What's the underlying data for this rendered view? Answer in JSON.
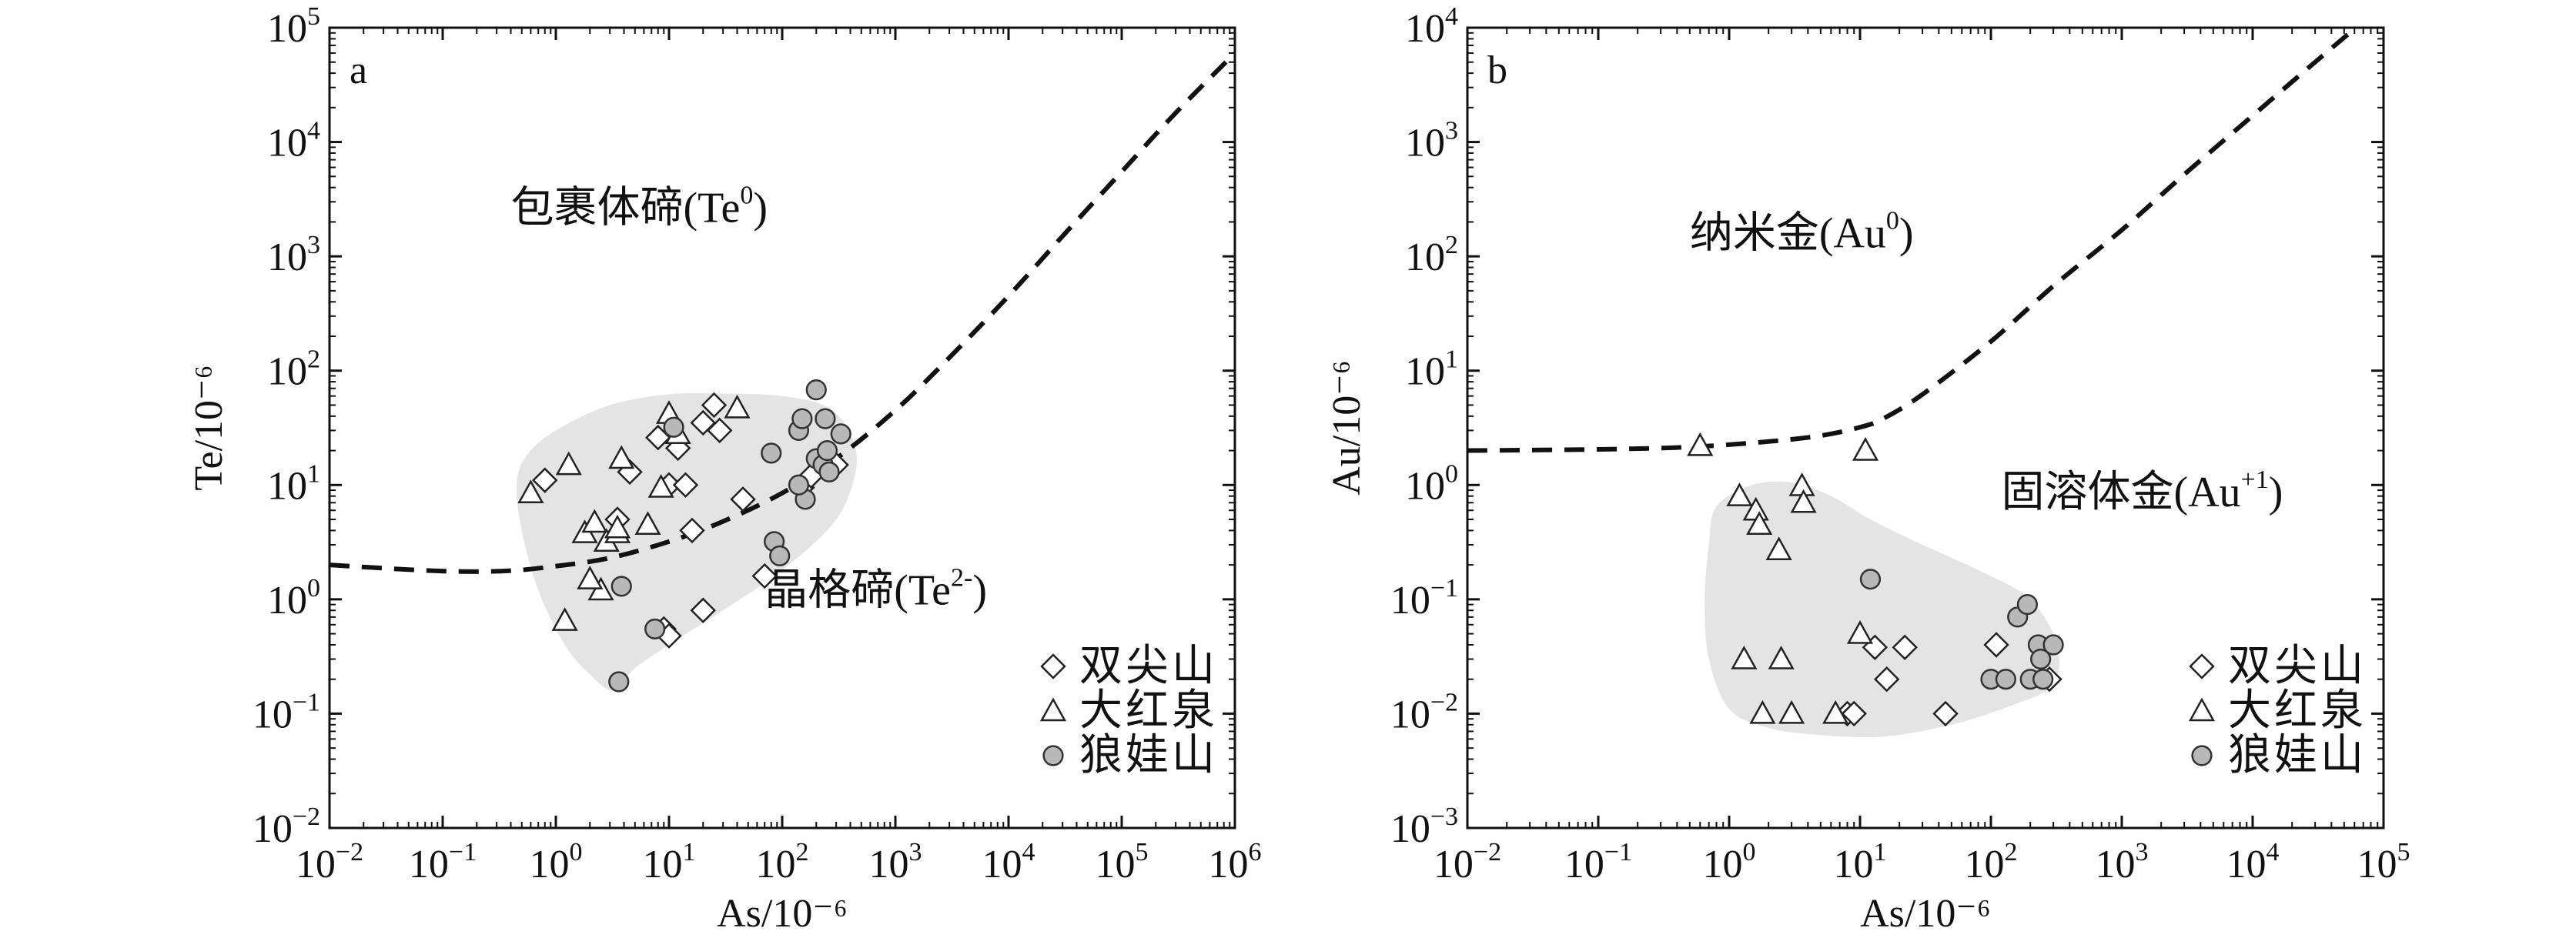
{
  "chart_data": [
    {
      "type": "scatter",
      "panel_label": "a",
      "xlabel": "As/10⁻⁶",
      "ylabel": "Te/10⁻⁶",
      "xscale": "log",
      "yscale": "log",
      "xlim": [
        0.01,
        1000000
      ],
      "ylim": [
        0.01,
        100000
      ],
      "x_ticks": [
        {
          "base": "10",
          "exp": "−2",
          "value": 0.01
        },
        {
          "base": "10",
          "exp": "−1",
          "value": 0.1
        },
        {
          "base": "10",
          "exp": "0",
          "value": 1
        },
        {
          "base": "10",
          "exp": "1",
          "value": 10
        },
        {
          "base": "10",
          "exp": "2",
          "value": 100
        },
        {
          "base": "10",
          "exp": "3",
          "value": 1000
        },
        {
          "base": "10",
          "exp": "4",
          "value": 10000
        },
        {
          "base": "10",
          "exp": "5",
          "value": 100000
        },
        {
          "base": "10",
          "exp": "6",
          "value": 1000000
        }
      ],
      "y_ticks": [
        {
          "base": "10",
          "exp": "−2",
          "value": 0.01
        },
        {
          "base": "10",
          "exp": "−1",
          "value": 0.1
        },
        {
          "base": "10",
          "exp": "0",
          "value": 1
        },
        {
          "base": "10",
          "exp": "1",
          "value": 10
        },
        {
          "base": "10",
          "exp": "2",
          "value": 100
        },
        {
          "base": "10",
          "exp": "3",
          "value": 1000
        },
        {
          "base": "10",
          "exp": "4",
          "value": 10000
        },
        {
          "base": "10",
          "exp": "5",
          "value": 100000
        }
      ],
      "annotations": [
        {
          "text": "包裹体碲(Te",
          "sup": "0",
          "tail": ")",
          "x": 0.4,
          "y": 2000
        },
        {
          "text": "晶格碲(Te",
          "sup": "2-",
          "tail": ")",
          "x": 70,
          "y": 0.9
        }
      ],
      "boundary_curve": {
        "style": "dashed",
        "points": [
          [
            0.01,
            2.0
          ],
          [
            0.05,
            1.82
          ],
          [
            0.15,
            1.75
          ],
          [
            0.4,
            1.78
          ],
          [
            1,
            1.95
          ],
          [
            3,
            2.3
          ],
          [
            10,
            3.2
          ],
          [
            30,
            4.8
          ],
          [
            100,
            8.5
          ],
          [
            300,
            17
          ],
          [
            1000,
            45
          ],
          [
            3000,
            130
          ],
          [
            10000,
            450
          ],
          [
            30000,
            1500
          ],
          [
            100000,
            5500
          ],
          [
            300000,
            18000
          ],
          [
            1000000,
            60000
          ]
        ]
      },
      "shaded_region": {
        "fill": "#e4e4e4",
        "points": [
          [
            0.55,
            18
          ],
          [
            1.0,
            30
          ],
          [
            3,
            50
          ],
          [
            10,
            62
          ],
          [
            30,
            63
          ],
          [
            100,
            60
          ],
          [
            250,
            48
          ],
          [
            400,
            28
          ],
          [
            450,
            14
          ],
          [
            300,
            5
          ],
          [
            100,
            1.8
          ],
          [
            30,
            0.8
          ],
          [
            10,
            0.4
          ],
          [
            5,
            0.25
          ],
          [
            3.2,
            0.16
          ],
          [
            2,
            0.22
          ],
          [
            1.2,
            0.4
          ],
          [
            0.7,
            1.2
          ],
          [
            0.5,
            4
          ],
          [
            0.45,
            10
          ]
        ]
      },
      "legend": {
        "position": "bottom-right",
        "entries": [
          {
            "marker": "diamond",
            "label": "双尖山"
          },
          {
            "marker": "triangle",
            "label": "大红泉"
          },
          {
            "marker": "circle",
            "label": "狼娃山"
          }
        ]
      },
      "series": [
        {
          "name": "双尖山",
          "marker": "diamond",
          "points": [
            [
              0.8,
              11
            ],
            [
              3.5,
              5
            ],
            [
              4.5,
              13
            ],
            [
              8,
              26
            ],
            [
              10,
              10
            ],
            [
              12,
              21
            ],
            [
              14,
              10
            ],
            [
              16,
              4
            ],
            [
              25,
              50
            ],
            [
              20,
              35
            ],
            [
              28,
              30
            ],
            [
              45,
              7.5
            ],
            [
              70,
              1.6
            ],
            [
              150,
              9.5
            ],
            [
              180,
              12
            ],
            [
              300,
              15
            ],
            [
              20,
              0.8
            ],
            [
              9,
              0.55
            ],
            [
              10,
              0.48
            ]
          ]
        },
        {
          "name": "大红泉",
          "marker": "triangle",
          "points": [
            [
              0.6,
              8.5
            ],
            [
              1.3,
              15
            ],
            [
              1.8,
              3.8
            ],
            [
              2.2,
              4.7
            ],
            [
              2.8,
              3.2
            ],
            [
              3.5,
              3.8
            ],
            [
              2.5,
              1.2
            ],
            [
              3.8,
              17
            ],
            [
              6.5,
              4.5
            ],
            [
              8.5,
              9.5
            ],
            [
              10,
              42
            ],
            [
              12,
              28
            ],
            [
              40,
              47
            ],
            [
              1.2,
              0.65
            ],
            [
              2,
              1.5
            ],
            [
              3.5,
              4.2
            ]
          ]
        },
        {
          "name": "狼娃山",
          "marker": "circle",
          "points": [
            [
              3.6,
              0.19
            ],
            [
              3.8,
              1.3
            ],
            [
              7.5,
              0.55
            ],
            [
              11,
              32
            ],
            [
              80,
              19
            ],
            [
              85,
              3.2
            ],
            [
              95,
              2.4
            ],
            [
              140,
              30
            ],
            [
              150,
              38
            ],
            [
              160,
              7.5
            ],
            [
              200,
              68
            ],
            [
              200,
              17
            ],
            [
              230,
              15
            ],
            [
              240,
              38
            ],
            [
              250,
              20
            ],
            [
              330,
              28
            ],
            [
              140,
              10
            ],
            [
              260,
              13
            ]
          ]
        }
      ]
    },
    {
      "type": "scatter",
      "panel_label": "b",
      "xlabel": "As/10⁻⁶",
      "ylabel": "Au/10⁻⁶",
      "xscale": "log",
      "yscale": "log",
      "xlim": [
        0.01,
        100000
      ],
      "ylim": [
        0.001,
        10000
      ],
      "x_ticks": [
        {
          "base": "10",
          "exp": "−2",
          "value": 0.01
        },
        {
          "base": "10",
          "exp": "−1",
          "value": 0.1
        },
        {
          "base": "10",
          "exp": "0",
          "value": 1
        },
        {
          "base": "10",
          "exp": "1",
          "value": 10
        },
        {
          "base": "10",
          "exp": "2",
          "value": 100
        },
        {
          "base": "10",
          "exp": "3",
          "value": 1000
        },
        {
          "base": "10",
          "exp": "4",
          "value": 10000
        },
        {
          "base": "10",
          "exp": "5",
          "value": 100000
        }
      ],
      "y_ticks": [
        {
          "base": "10",
          "exp": "−3",
          "value": 0.001
        },
        {
          "base": "10",
          "exp": "−2",
          "value": 0.01
        },
        {
          "base": "10",
          "exp": "−1",
          "value": 0.1
        },
        {
          "base": "10",
          "exp": "0",
          "value": 1
        },
        {
          "base": "10",
          "exp": "1",
          "value": 10
        },
        {
          "base": "10",
          "exp": "2",
          "value": 100
        },
        {
          "base": "10",
          "exp": "3",
          "value": 1000
        },
        {
          "base": "10",
          "exp": "4",
          "value": 10000
        }
      ],
      "annotations": [
        {
          "text": "纳米金(Au",
          "sup": "0",
          "tail": ")",
          "x": 0.5,
          "y": 120
        },
        {
          "text": "固溶体金(Au",
          "sup": "+1",
          "tail": ")",
          "x": 120,
          "y": 0.65
        }
      ],
      "boundary_curve": {
        "style": "dashed",
        "points": [
          [
            0.01,
            2.0
          ],
          [
            0.1,
            2.05
          ],
          [
            0.5,
            2.15
          ],
          [
            2,
            2.4
          ],
          [
            5,
            2.7
          ],
          [
            10,
            3.2
          ],
          [
            15,
            3.8
          ],
          [
            30,
            6.2
          ],
          [
            100,
            18
          ],
          [
            300,
            55
          ],
          [
            1000,
            170
          ],
          [
            3000,
            520
          ],
          [
            10000,
            1700
          ],
          [
            30000,
            5000
          ],
          [
            100000,
            16000
          ]
        ]
      },
      "shaded_region": {
        "fill": "#e4e4e4",
        "points": [
          [
            0.8,
            0.65
          ],
          [
            1.5,
            1.0
          ],
          [
            3,
            1.05
          ],
          [
            6,
            0.8
          ],
          [
            12,
            0.5
          ],
          [
            30,
            0.3
          ],
          [
            80,
            0.18
          ],
          [
            200,
            0.1
          ],
          [
            320,
            0.04
          ],
          [
            300,
            0.018
          ],
          [
            150,
            0.012
          ],
          [
            50,
            0.008
          ],
          [
            15,
            0.0063
          ],
          [
            5,
            0.0065
          ],
          [
            2,
            0.0075
          ],
          [
            1,
            0.011
          ],
          [
            0.7,
            0.03
          ],
          [
            0.65,
            0.1
          ],
          [
            0.7,
            0.3
          ]
        ]
      },
      "legend": {
        "position": "bottom-right",
        "entries": [
          {
            "marker": "diamond",
            "label": "双尖山"
          },
          {
            "marker": "triangle",
            "label": "大红泉"
          },
          {
            "marker": "circle",
            "label": "狼娃山"
          }
        ]
      },
      "series": [
        {
          "name": "双尖山",
          "marker": "diamond",
          "points": [
            [
              8,
              0.01
            ],
            [
              9,
              0.01
            ],
            [
              13,
              0.038
            ],
            [
              16,
              0.02
            ],
            [
              22,
              0.038
            ],
            [
              45,
              0.01
            ],
            [
              110,
              0.04
            ],
            [
              280,
              0.02
            ]
          ]
        },
        {
          "name": "大红泉",
          "marker": "triangle",
          "points": [
            [
              0.6,
              2.2
            ],
            [
              1.2,
              0.8
            ],
            [
              1.6,
              0.6
            ],
            [
              1.7,
              0.45
            ],
            [
              2.4,
              0.27
            ],
            [
              3.6,
              0.98
            ],
            [
              3.7,
              0.7
            ],
            [
              1.3,
              0.03
            ],
            [
              2.5,
              0.03
            ],
            [
              1.8,
              0.01
            ],
            [
              3,
              0.01
            ],
            [
              6.5,
              0.01
            ],
            [
              10,
              0.05
            ],
            [
              11,
              2.0
            ]
          ]
        },
        {
          "name": "狼娃山",
          "marker": "circle",
          "points": [
            [
              12,
              0.15
            ],
            [
              100,
              0.02
            ],
            [
              130,
              0.02
            ],
            [
              160,
              0.07
            ],
            [
              190,
              0.09
            ],
            [
              200,
              0.02
            ],
            [
              230,
              0.04
            ],
            [
              240,
              0.03
            ],
            [
              300,
              0.04
            ],
            [
              250,
              0.02
            ]
          ]
        }
      ]
    }
  ]
}
